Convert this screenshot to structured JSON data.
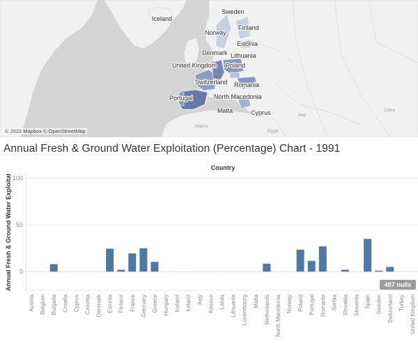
{
  "map": {
    "attribution": "© 2022 Mapbox © OpenStreetMap",
    "labels": [
      "Iceland",
      "Sweden",
      "Norway",
      "Finland",
      "Estonia",
      "Denmark",
      "Lithuania",
      "United Kingdom",
      "Poland",
      "Switzerland",
      "Romania",
      "Portugal",
      "North Macedonia",
      "Malta",
      "Cyprus"
    ],
    "region_labels": [
      "Algeria",
      "Egypt",
      "Iraq",
      "China"
    ],
    "colors": {
      "water": "#d4d4d4",
      "land": "#f1f1f1",
      "shaded_light": "#b7c2d8",
      "shaded_mid": "#8d9cc0",
      "shaded_dark": "#6677a8"
    }
  },
  "chart": {
    "title": "Annual Fresh & Ground Water Exploitation (Percentage) Chart - 1991",
    "column_header": "Country",
    "y_axis_title": "Annual Fresh & Ground Water Exploitati..",
    "nulls_badge": "487 nulls",
    "bar_color": "#4e79a7"
  },
  "chart_data": {
    "type": "bar",
    "title": "Annual Fresh & Ground Water Exploitation (Percentage) Chart - 1991",
    "xlabel": "Country",
    "ylabel": "Annual Fresh & Ground Water Exploitati..",
    "ylim": [
      -20,
      100
    ],
    "yticks": [
      0,
      50,
      100
    ],
    "grid": true,
    "categories": [
      "Austria",
      "Belgium",
      "Bulgaria",
      "Croatia",
      "Cyprus",
      "Czechia",
      "Denmark",
      "Estonia",
      "Finland",
      "France",
      "Germany",
      "Greece",
      "Hungary",
      "Iceland",
      "Ireland",
      "Italy",
      "Kosovo",
      "Latvia",
      "Lithuania",
      "Luxembourg",
      "Malta",
      "Netherlands",
      "North Macedonia",
      "Norway",
      "Poland",
      "Portugal",
      "Romania",
      "Serbia",
      "Slovakia",
      "Slovenia",
      "Spain",
      "Sweden",
      "Switzerland",
      "Turkey",
      "United Kingdom"
    ],
    "values": [
      null,
      null,
      8,
      null,
      null,
      null,
      null,
      24.5,
      2,
      19.5,
      25,
      10.5,
      null,
      null,
      null,
      null,
      null,
      null,
      null,
      null,
      null,
      8.5,
      null,
      null,
      23.5,
      11.5,
      27,
      null,
      2,
      null,
      35,
      1,
      5,
      null,
      null
    ]
  }
}
